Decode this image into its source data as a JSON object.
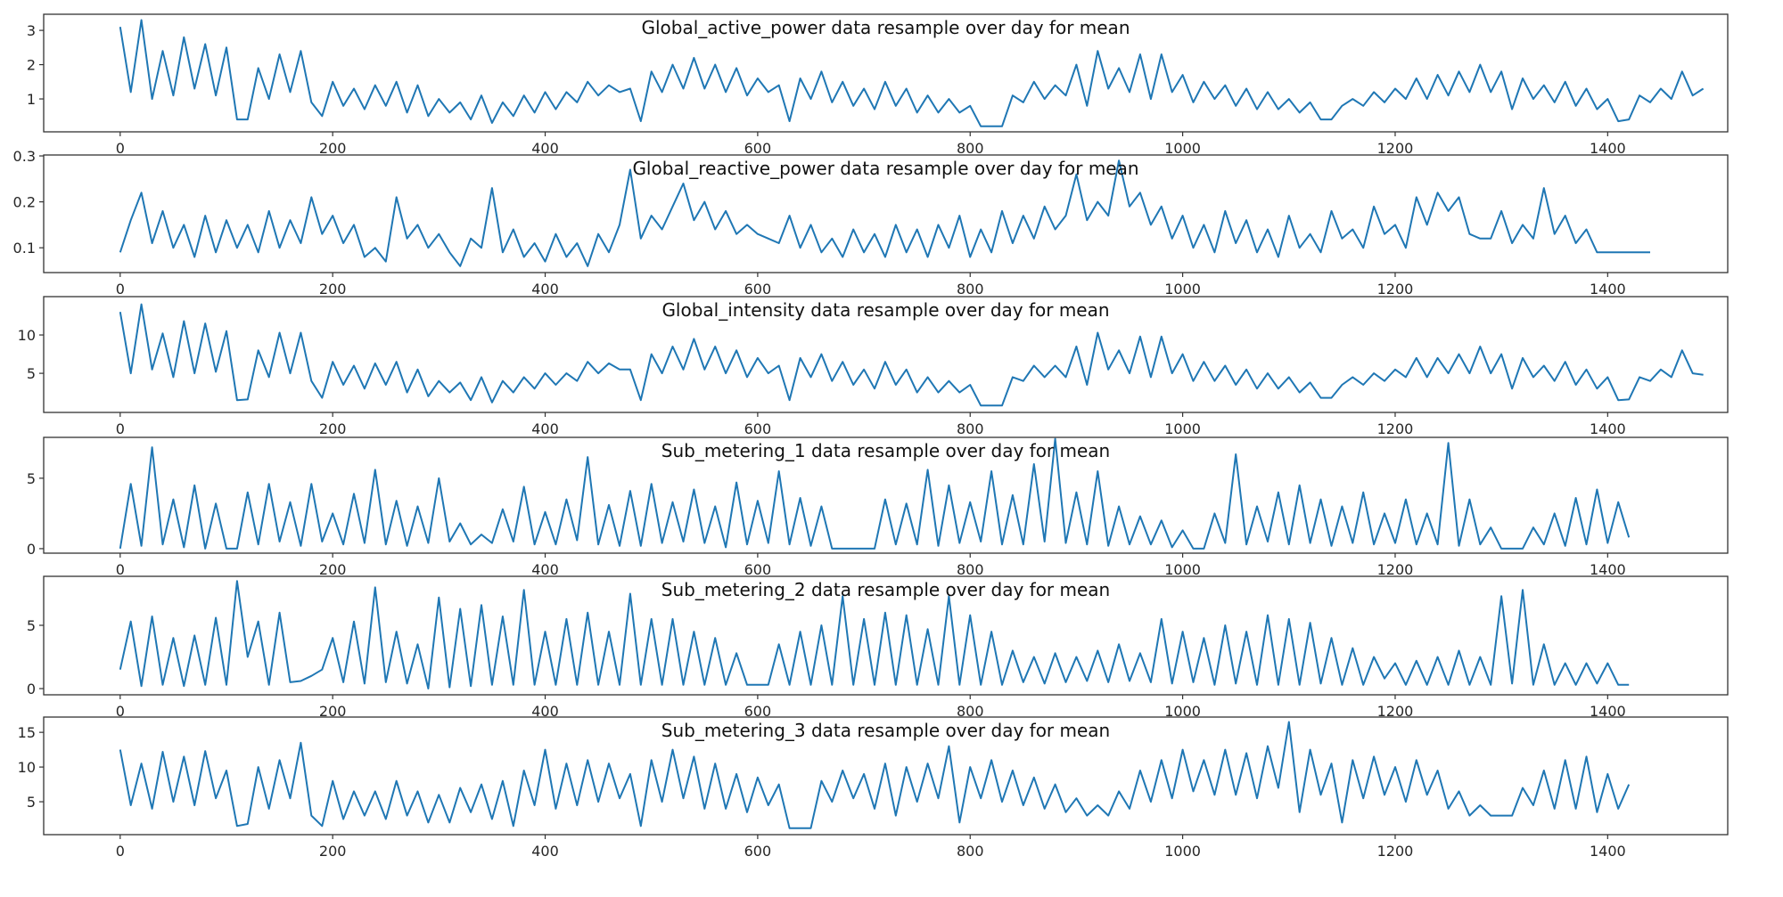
{
  "chart_data": [
    {
      "type": "line",
      "title": "Global_active_power data resample over day for mean",
      "xlabel": "",
      "ylabel": "",
      "xlim": [
        -72,
        1513
      ],
      "ylim": [
        0.04,
        3.47
      ],
      "xticks": [
        0,
        200,
        400,
        600,
        800,
        1000,
        1200,
        1400
      ],
      "yticks": [
        1,
        2,
        3
      ],
      "ytick_labels": [
        "1",
        "2",
        "3"
      ],
      "grid": false,
      "series": [
        {
          "name": "Global_active_power",
          "color": "#1f77b4",
          "x_step": 10,
          "values": [
            3.1,
            1.2,
            3.3,
            1.0,
            2.4,
            1.1,
            2.8,
            1.3,
            2.6,
            1.1,
            2.5,
            0.4,
            0.4,
            1.9,
            1.0,
            2.3,
            1.2,
            2.4,
            0.9,
            0.5,
            1.5,
            0.8,
            1.3,
            0.7,
            1.4,
            0.8,
            1.5,
            0.6,
            1.4,
            0.5,
            1.0,
            0.6,
            0.9,
            0.4,
            1.1,
            0.3,
            0.9,
            0.5,
            1.1,
            0.6,
            1.2,
            0.7,
            1.2,
            0.9,
            1.5,
            1.1,
            1.4,
            1.2,
            1.3,
            0.35,
            1.8,
            1.2,
            2.0,
            1.3,
            2.2,
            1.3,
            2.0,
            1.2,
            1.9,
            1.1,
            1.6,
            1.2,
            1.4,
            0.35,
            1.6,
            1.0,
            1.8,
            0.9,
            1.5,
            0.8,
            1.3,
            0.7,
            1.5,
            0.8,
            1.3,
            0.6,
            1.1,
            0.6,
            1.0,
            0.6,
            0.8,
            0.2,
            0.2,
            0.2,
            1.1,
            0.9,
            1.5,
            1.0,
            1.4,
            1.1,
            2.0,
            0.8,
            2.4,
            1.3,
            1.9,
            1.2,
            2.3,
            1.0,
            2.3,
            1.2,
            1.7,
            0.9,
            1.5,
            1.0,
            1.4,
            0.8,
            1.3,
            0.7,
            1.2,
            0.7,
            1.0,
            0.6,
            0.9,
            0.4,
            0.4,
            0.8,
            1.0,
            0.8,
            1.2,
            0.9,
            1.3,
            1.0,
            1.6,
            1.0,
            1.7,
            1.1,
            1.8,
            1.2,
            2.0,
            1.2,
            1.8,
            0.7,
            1.6,
            1.0,
            1.4,
            0.9,
            1.5,
            0.8,
            1.3,
            0.7,
            1.0,
            0.35,
            0.4,
            1.1,
            0.9,
            1.3,
            1.0,
            1.8,
            1.1,
            1.3
          ]
        }
      ]
    },
    {
      "type": "line",
      "title": "Global_reactive_power data resample over day for mean",
      "xlabel": "",
      "ylabel": "",
      "xlim": [
        -72,
        1513
      ],
      "ylim": [
        0.046,
        0.302
      ],
      "xticks": [
        0,
        200,
        400,
        600,
        800,
        1000,
        1200,
        1400
      ],
      "yticks": [
        0.1,
        0.2,
        0.3
      ],
      "ytick_labels": [
        "0.1",
        "0.2",
        "0.3"
      ],
      "grid": false,
      "series": [
        {
          "name": "Global_reactive_power",
          "color": "#1f77b4",
          "x_step": 10,
          "values": [
            0.09,
            0.16,
            0.22,
            0.11,
            0.18,
            0.1,
            0.15,
            0.08,
            0.17,
            0.09,
            0.16,
            0.1,
            0.15,
            0.09,
            0.18,
            0.1,
            0.16,
            0.11,
            0.21,
            0.13,
            0.17,
            0.11,
            0.15,
            0.08,
            0.1,
            0.07,
            0.21,
            0.12,
            0.15,
            0.1,
            0.13,
            0.09,
            0.06,
            0.12,
            0.1,
            0.23,
            0.09,
            0.14,
            0.08,
            0.11,
            0.07,
            0.13,
            0.08,
            0.11,
            0.06,
            0.13,
            0.09,
            0.15,
            0.27,
            0.12,
            0.17,
            0.14,
            0.19,
            0.24,
            0.16,
            0.2,
            0.14,
            0.18,
            0.13,
            0.15,
            0.13,
            0.12,
            0.11,
            0.17,
            0.1,
            0.15,
            0.09,
            0.12,
            0.08,
            0.14,
            0.09,
            0.13,
            0.08,
            0.15,
            0.09,
            0.14,
            0.08,
            0.15,
            0.1,
            0.17,
            0.08,
            0.14,
            0.09,
            0.18,
            0.11,
            0.17,
            0.12,
            0.19,
            0.14,
            0.17,
            0.26,
            0.16,
            0.2,
            0.17,
            0.29,
            0.19,
            0.22,
            0.15,
            0.19,
            0.12,
            0.17,
            0.1,
            0.15,
            0.09,
            0.18,
            0.11,
            0.16,
            0.09,
            0.14,
            0.08,
            0.17,
            0.1,
            0.13,
            0.09,
            0.18,
            0.12,
            0.14,
            0.1,
            0.19,
            0.13,
            0.15,
            0.1,
            0.21,
            0.15,
            0.22,
            0.18,
            0.21,
            0.13,
            0.12,
            0.12,
            0.18,
            0.11,
            0.15,
            0.12,
            0.23,
            0.13,
            0.17,
            0.11,
            0.14,
            0.09,
            0.09,
            0.09,
            0.09,
            0.09,
            0.09
          ]
        }
      ]
    },
    {
      "type": "line",
      "title": "Global_intensity data resample over day for mean",
      "xlabel": "",
      "ylabel": "",
      "xlim": [
        -72,
        1513
      ],
      "ylim": [
        -0.1,
        15.0
      ],
      "xticks": [
        0,
        200,
        400,
        600,
        800,
        1000,
        1200,
        1400
      ],
      "yticks": [
        5,
        10
      ],
      "ytick_labels": [
        "5",
        "10"
      ],
      "grid": false,
      "series": [
        {
          "name": "Global_intensity",
          "color": "#1f77b4",
          "x_step": 10,
          "values": [
            13.0,
            5.0,
            14.0,
            5.5,
            10.2,
            4.5,
            11.8,
            5.0,
            11.5,
            5.2,
            10.5,
            1.5,
            1.6,
            8.0,
            4.5,
            10.3,
            5.0,
            10.3,
            4.0,
            1.8,
            6.5,
            3.5,
            6.0,
            3.0,
            6.3,
            3.5,
            6.5,
            2.5,
            5.5,
            2.0,
            4.0,
            2.5,
            3.8,
            1.5,
            4.5,
            1.2,
            4.0,
            2.5,
            4.5,
            3.0,
            5.0,
            3.5,
            5.0,
            4.0,
            6.5,
            5.0,
            6.3,
            5.5,
            5.5,
            1.5,
            7.5,
            5.0,
            8.5,
            5.5,
            9.5,
            5.5,
            8.5,
            5.0,
            8.0,
            4.5,
            7.0,
            5.0,
            6.0,
            1.5,
            7.0,
            4.5,
            7.5,
            4.0,
            6.5,
            3.5,
            5.5,
            3.0,
            6.5,
            3.5,
            5.5,
            2.5,
            4.5,
            2.5,
            4.0,
            2.5,
            3.5,
            0.8,
            0.8,
            0.8,
            4.5,
            4.0,
            6.0,
            4.5,
            6.0,
            4.5,
            8.5,
            3.5,
            10.3,
            5.5,
            8.0,
            5.0,
            9.8,
            4.5,
            9.8,
            5.0,
            7.5,
            4.0,
            6.5,
            4.0,
            6.0,
            3.5,
            5.5,
            3.0,
            5.0,
            3.0,
            4.5,
            2.5,
            3.8,
            1.8,
            1.8,
            3.5,
            4.5,
            3.5,
            5.0,
            4.0,
            5.5,
            4.5,
            7.0,
            4.5,
            7.0,
            5.0,
            7.5,
            5.0,
            8.5,
            5.0,
            7.5,
            3.0,
            7.0,
            4.5,
            6.0,
            4.0,
            6.5,
            3.5,
            5.5,
            3.0,
            4.5,
            1.5,
            1.6,
            4.5,
            4.0,
            5.5,
            4.5,
            8.0,
            5.0,
            4.8
          ]
        }
      ]
    },
    {
      "type": "line",
      "title": "Sub_metering_1 data resample over day for mean",
      "xlabel": "",
      "ylabel": "",
      "xlim": [
        -72,
        1513
      ],
      "ylim": [
        -0.32,
        7.9
      ],
      "xticks": [
        0,
        200,
        400,
        600,
        800,
        1000,
        1200,
        1400
      ],
      "yticks": [
        0,
        5
      ],
      "ytick_labels": [
        "0",
        "5"
      ],
      "grid": false,
      "series": [
        {
          "name": "Sub_metering_1",
          "color": "#1f77b4",
          "x_step": 10,
          "values": [
            0.0,
            4.6,
            0.2,
            7.2,
            0.3,
            3.5,
            0.1,
            4.5,
            0.0,
            3.2,
            0.0,
            0.0,
            4.0,
            0.3,
            4.6,
            0.5,
            3.3,
            0.2,
            4.6,
            0.5,
            2.5,
            0.3,
            3.9,
            0.4,
            5.6,
            0.3,
            3.4,
            0.2,
            3.0,
            0.4,
            5.0,
            0.5,
            1.8,
            0.3,
            1.0,
            0.4,
            2.8,
            0.5,
            4.4,
            0.3,
            2.6,
            0.3,
            3.5,
            0.6,
            6.5,
            0.3,
            3.1,
            0.2,
            4.1,
            0.2,
            4.6,
            0.4,
            3.3,
            0.5,
            4.2,
            0.4,
            3.0,
            0.1,
            4.7,
            0.3,
            3.4,
            0.4,
            5.5,
            0.3,
            3.6,
            0.2,
            3.0,
            0.0,
            0.0,
            0.0,
            0.0,
            0.0,
            3.5,
            0.3,
            3.2,
            0.3,
            5.6,
            0.2,
            4.5,
            0.4,
            3.3,
            0.5,
            5.5,
            0.3,
            3.8,
            0.3,
            6.0,
            0.5,
            7.8,
            0.4,
            4.0,
            0.3,
            5.5,
            0.2,
            3.0,
            0.3,
            2.3,
            0.3,
            2.0,
            0.1,
            1.3,
            0.0,
            0.0,
            2.5,
            0.4,
            6.7,
            0.3,
            3.0,
            0.5,
            4.0,
            0.3,
            4.5,
            0.4,
            3.5,
            0.2,
            3.0,
            0.4,
            4.0,
            0.3,
            2.5,
            0.4,
            3.5,
            0.3,
            2.5,
            0.3,
            7.5,
            0.2,
            3.5,
            0.3,
            1.5,
            0.0,
            0.0,
            0.0,
            1.5,
            0.3,
            2.5,
            0.2,
            3.6,
            0.3,
            4.2,
            0.4,
            3.3,
            0.8
          ]
        }
      ]
    },
    {
      "type": "line",
      "title": "Sub_metering_2 data resample over day for mean",
      "xlabel": "",
      "ylabel": "",
      "xlim": [
        -72,
        1513
      ],
      "ylim": [
        -0.49,
        8.87
      ],
      "xticks": [
        0,
        200,
        400,
        600,
        800,
        1000,
        1200,
        1400
      ],
      "yticks": [
        0,
        5
      ],
      "ytick_labels": [
        "0",
        "5"
      ],
      "grid": false,
      "series": [
        {
          "name": "Sub_metering_2",
          "color": "#1f77b4",
          "x_step": 10,
          "values": [
            1.5,
            5.3,
            0.2,
            5.7,
            0.3,
            4.0,
            0.2,
            4.2,
            0.3,
            5.6,
            0.3,
            8.5,
            2.5,
            5.3,
            0.3,
            6.0,
            0.5,
            0.6,
            1.0,
            1.5,
            4.0,
            0.5,
            5.3,
            0.4,
            8.0,
            0.5,
            4.5,
            0.4,
            3.5,
            0.0,
            7.2,
            0.1,
            6.3,
            0.2,
            6.6,
            0.3,
            5.7,
            0.3,
            7.8,
            0.3,
            4.5,
            0.3,
            5.5,
            0.3,
            6.0,
            0.3,
            4.5,
            0.3,
            7.5,
            0.3,
            5.5,
            0.3,
            5.5,
            0.3,
            4.5,
            0.3,
            4.0,
            0.3,
            2.8,
            0.3,
            0.3,
            0.3,
            3.5,
            0.3,
            4.5,
            0.3,
            5.0,
            0.3,
            7.3,
            0.3,
            5.5,
            0.3,
            6.0,
            0.3,
            5.8,
            0.3,
            4.7,
            0.3,
            7.3,
            0.3,
            5.8,
            0.3,
            4.5,
            0.3,
            3.0,
            0.5,
            2.5,
            0.4,
            2.8,
            0.5,
            2.5,
            0.6,
            3.0,
            0.5,
            3.5,
            0.6,
            2.8,
            0.5,
            5.5,
            0.4,
            4.5,
            0.5,
            4.0,
            0.3,
            5.0,
            0.4,
            4.5,
            0.3,
            5.8,
            0.3,
            5.5,
            0.3,
            5.2,
            0.4,
            4.0,
            0.3,
            3.2,
            0.3,
            2.5,
            0.8,
            2.0,
            0.3,
            2.2,
            0.3,
            2.5,
            0.3,
            3.0,
            0.3,
            2.5,
            0.3,
            7.3,
            0.4,
            7.8,
            0.3,
            3.5,
            0.3,
            2.0,
            0.3,
            2.0,
            0.4,
            2.0,
            0.3,
            0.3
          ]
        }
      ]
    },
    {
      "type": "line",
      "title": "Sub_metering_3 data resample over day for mean",
      "xlabel": "",
      "ylabel": "",
      "xlim": [
        -72,
        1513
      ],
      "ylim": [
        0.26,
        17.2
      ],
      "xticks": [
        0,
        200,
        400,
        600,
        800,
        1000,
        1200,
        1400
      ],
      "yticks": [
        5,
        10,
        15
      ],
      "ytick_labels": [
        "5",
        "10",
        "15"
      ],
      "grid": false,
      "series": [
        {
          "name": "Sub_metering_3",
          "color": "#1f77b4",
          "x_step": 10,
          "values": [
            12.5,
            4.5,
            10.5,
            4.0,
            12.2,
            5.0,
            11.5,
            4.5,
            12.3,
            5.5,
            9.5,
            1.5,
            1.8,
            10.0,
            4.0,
            11.0,
            5.5,
            13.5,
            3.0,
            1.5,
            8.0,
            2.5,
            6.5,
            3.0,
            6.5,
            2.5,
            8.0,
            3.0,
            6.5,
            2.0,
            6.0,
            2.0,
            7.0,
            3.5,
            7.5,
            2.5,
            8.0,
            1.5,
            9.5,
            4.5,
            12.5,
            4.0,
            10.5,
            4.5,
            11.0,
            5.0,
            10.5,
            5.5,
            9.0,
            1.5,
            11.0,
            5.0,
            12.5,
            5.5,
            11.5,
            4.0,
            10.5,
            4.0,
            9.0,
            3.5,
            8.5,
            4.5,
            7.5,
            1.2,
            1.2,
            1.2,
            8.0,
            5.0,
            9.5,
            5.5,
            9.0,
            4.0,
            10.5,
            3.0,
            10.0,
            5.0,
            10.5,
            5.5,
            13.0,
            2.0,
            10.0,
            5.5,
            11.0,
            5.0,
            9.5,
            4.5,
            8.5,
            4.0,
            7.5,
            3.5,
            5.5,
            3.0,
            4.5,
            3.0,
            6.5,
            4.0,
            9.5,
            5.0,
            11.0,
            5.5,
            12.5,
            6.5,
            11.0,
            6.0,
            12.5,
            6.0,
            12.0,
            5.5,
            13.0,
            7.0,
            16.5,
            3.5,
            12.5,
            6.0,
            10.5,
            2.0,
            11.0,
            5.5,
            11.5,
            6.0,
            10.0,
            5.0,
            11.0,
            6.0,
            9.5,
            4.0,
            6.5,
            3.0,
            4.5,
            3.0,
            3.0,
            3.0,
            7.0,
            4.5,
            9.5,
            4.0,
            11.0,
            4.0,
            11.5,
            3.5,
            9.0,
            4.0,
            7.5
          ]
        }
      ]
    }
  ]
}
